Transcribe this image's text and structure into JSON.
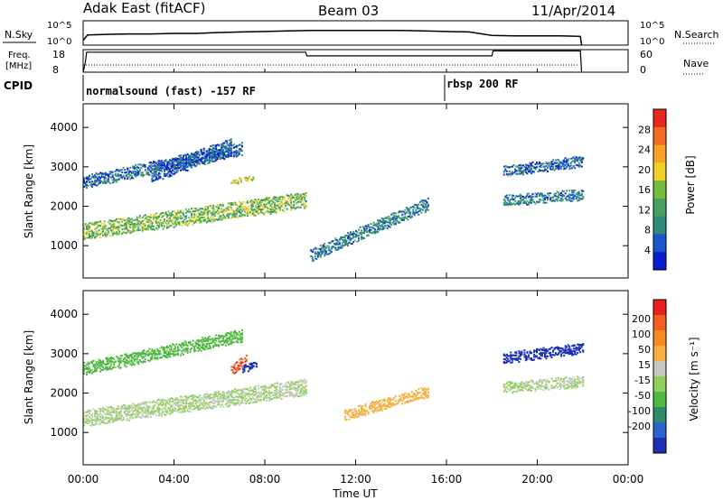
{
  "header": {
    "station": "Adak East (fitACF)",
    "beam": "Beam 03",
    "date": "11/Apr/2014"
  },
  "strip_labels": {
    "nsky": "N.Sky",
    "nsearch": "N.Search",
    "freq_line1": "Freq.",
    "freq_line2": "[MHz]",
    "nave": "Nave",
    "cpid": "CPID",
    "nsky_tick_top": "10^5",
    "nsky_tick_bot": "10^0",
    "nsearch_tick_top": "10^5",
    "nsearch_tick_bot": "10^0",
    "freq_tick_top": "18",
    "freq_tick_bot": "8",
    "nave_tick_top": "60",
    "nave_tick_bot": "0"
  },
  "cpid_programs": [
    {
      "label": "normalsound (fast) -157 RF",
      "start_hour": 0
    },
    {
      "label": "rbsp 200 RF",
      "start_hour": 16
    }
  ],
  "axes": {
    "x_ticks": [
      "00:00",
      "04:00",
      "08:00",
      "12:00",
      "16:00",
      "20:00",
      "00:00"
    ],
    "x_range_hours": [
      0,
      24
    ],
    "xlabel": "Time UT",
    "y_ticks": [
      "1000",
      "2000",
      "3000",
      "4000"
    ],
    "y_range_km": [
      180,
      4600
    ],
    "ylabel": "Slant Range [km]"
  },
  "colorbars": {
    "power": {
      "label": "Power [dB]",
      "ticks": [
        "4",
        "8",
        "12",
        "16",
        "20",
        "24",
        "28"
      ],
      "colors": [
        "#0a1dcc",
        "#1a55cc",
        "#2f8a7a",
        "#46a060",
        "#74bd3c",
        "#f0d028",
        "#f7a32a",
        "#f26b22",
        "#e8281e"
      ]
    },
    "velocity": {
      "label": "Velocity [m s⁻¹]",
      "ticks": [
        "200",
        "100",
        "50",
        "15",
        "-15",
        "-50",
        "-100",
        "-200"
      ],
      "colors": [
        "#1d2fb3",
        "#2c64c8",
        "#2f8a6a",
        "#4fb840",
        "#8ed25a",
        "#c8c8c0",
        "#f5b040",
        "#f58a22",
        "#f06020",
        "#e8201e"
      ]
    }
  },
  "chart_data": [
    {
      "type": "heatmap",
      "title": "Power",
      "xlabel": "Time UT",
      "ylabel": "Slant Range [km]",
      "x_unit": "hours UT",
      "xlim": [
        0,
        24
      ],
      "ylim": [
        180,
        4600
      ],
      "zlabel": "Power [dB]",
      "zlim": [
        0,
        30
      ],
      "regions": [
        {
          "t": [
            0.0,
            9.8
          ],
          "r_start": [
            1150,
            1950
          ],
          "thickness_km": 420,
          "power_db": 14,
          "desc": "main band"
        },
        {
          "t": [
            0.0,
            7.0
          ],
          "r_start": [
            2450,
            3300
          ],
          "thickness_km": 300,
          "power_db": 6
        },
        {
          "t": [
            3.0,
            6.5
          ],
          "r_start": [
            2600,
            3300
          ],
          "thickness_km": 400,
          "power_db": 5
        },
        {
          "t": [
            6.5,
            7.5
          ],
          "r_start": [
            2550,
            2650
          ],
          "thickness_km": 120,
          "power_db": 18
        },
        {
          "t": [
            10.0,
            15.2
          ],
          "r_start": [
            600,
            1900
          ],
          "thickness_km": 300,
          "power_db": 8
        },
        {
          "t": [
            18.5,
            22.0
          ],
          "r_start": [
            2000,
            2150
          ],
          "thickness_km": 250,
          "power_db": 8
        },
        {
          "t": [
            18.5,
            22.0
          ],
          "r_start": [
            2750,
            3000
          ],
          "thickness_km": 250,
          "power_db": 6
        }
      ]
    },
    {
      "type": "heatmap",
      "title": "Velocity",
      "xlabel": "Time UT",
      "ylabel": "Slant Range [km]",
      "x_unit": "hours UT",
      "xlim": [
        0,
        24
      ],
      "ylim": [
        180,
        4600
      ],
      "zlabel": "Velocity [m s⁻¹]",
      "zlim": [
        -200,
        200
      ],
      "regions": [
        {
          "t": [
            0.0,
            9.8
          ],
          "r_start": [
            1150,
            1950
          ],
          "thickness_km": 420,
          "velocity": 0,
          "desc": "ground scatter"
        },
        {
          "t": [
            0.0,
            7.0
          ],
          "r_start": [
            2450,
            3300
          ],
          "thickness_km": 300,
          "velocity": -60
        },
        {
          "t": [
            6.5,
            7.2
          ],
          "r_start": [
            2450,
            2700
          ],
          "thickness_km": 250,
          "velocity": 150
        },
        {
          "t": [
            7.0,
            7.6
          ],
          "r_start": [
            2500,
            2650
          ],
          "thickness_km": 200,
          "velocity": -200
        },
        {
          "t": [
            11.5,
            15.2
          ],
          "r_start": [
            1300,
            1900
          ],
          "thickness_km": 280,
          "velocity": 60
        },
        {
          "t": [
            18.5,
            22.0
          ],
          "r_start": [
            2000,
            2150
          ],
          "thickness_km": 250,
          "velocity": 0
        },
        {
          "t": [
            18.5,
            22.0
          ],
          "r_start": [
            2750,
            3000
          ],
          "thickness_km": 250,
          "velocity": -180
        }
      ]
    }
  ],
  "nsky_series": [
    [
      0,
      1
    ],
    [
      0.2,
      2.1
    ],
    [
      1,
      2.2
    ],
    [
      2,
      2.3
    ],
    [
      3,
      2.3
    ],
    [
      4,
      2.4
    ],
    [
      5,
      2.4
    ],
    [
      6,
      2.6
    ],
    [
      7,
      2.7
    ],
    [
      8,
      2.8
    ],
    [
      9,
      2.9
    ],
    [
      10,
      3.0
    ],
    [
      11,
      3.0
    ],
    [
      12,
      3.0
    ],
    [
      13,
      3.0
    ],
    [
      14,
      3.0
    ],
    [
      15,
      2.9
    ],
    [
      16,
      2.8
    ],
    [
      17,
      2.7
    ],
    [
      18,
      2.0
    ],
    [
      19,
      1.9
    ],
    [
      20,
      1.9
    ],
    [
      21,
      1.9
    ],
    [
      21.9,
      1.8
    ],
    [
      21.95,
      0
    ]
  ],
  "freq_series": [
    [
      0,
      0
    ],
    [
      0.1,
      8
    ],
    [
      0.15,
      16
    ],
    [
      9.8,
      16
    ],
    [
      9.85,
      13
    ],
    [
      18,
      13
    ],
    [
      18.05,
      17
    ],
    [
      21.9,
      17
    ],
    [
      21.95,
      0
    ]
  ]
}
